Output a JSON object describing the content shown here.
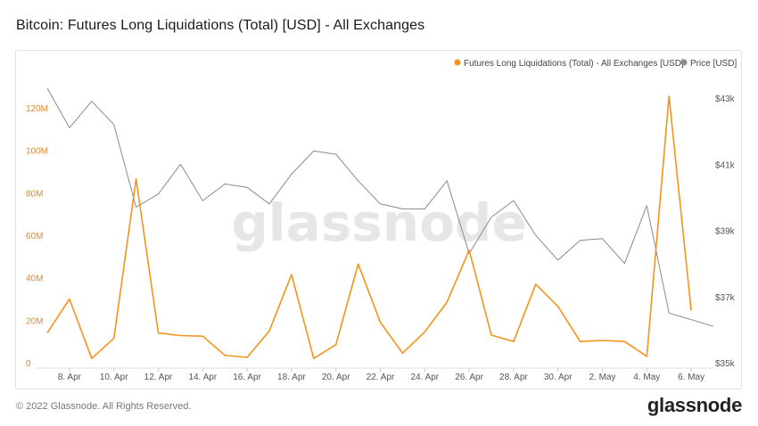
{
  "header": {
    "title": "Bitcoin: Futures Long Liquidations (Total) [USD] - All Exchanges"
  },
  "footer": {
    "copyright": "© 2022 Glassnode. All Rights Reserved.",
    "brand": "glassnode"
  },
  "watermark": "glassnode",
  "colors": {
    "liquidations": "#f7931a",
    "price": "#8a8a8a",
    "left_axis_text": "#e08a2a",
    "right_axis_text": "#555555"
  },
  "chart_data": {
    "type": "line",
    "title": "Bitcoin: Futures Long Liquidations (Total) [USD] - All Exchanges",
    "x": [
      "Apr 7",
      "Apr 8",
      "Apr 9",
      "Apr 10",
      "Apr 11",
      "Apr 12",
      "Apr 13",
      "Apr 14",
      "Apr 15",
      "Apr 16",
      "Apr 17",
      "Apr 18",
      "Apr 19",
      "Apr 20",
      "Apr 21",
      "Apr 22",
      "Apr 23",
      "Apr 24",
      "Apr 25",
      "Apr 26",
      "Apr 27",
      "Apr 28",
      "Apr 29",
      "Apr 30",
      "May 1",
      "May 2",
      "May 3",
      "May 4",
      "May 5",
      "May 6",
      "May 7"
    ],
    "x_ticks": [
      "8. Apr",
      "10. Apr",
      "12. Apr",
      "14. Apr",
      "16. Apr",
      "18. Apr",
      "20. Apr",
      "22. Apr",
      "24. Apr",
      "26. Apr",
      "28. Apr",
      "30. Apr",
      "2. May",
      "4. May",
      "6. May"
    ],
    "left_axis": {
      "ticks": [
        "0",
        "20M",
        "40M",
        "60M",
        "80M",
        "100M",
        "120M"
      ],
      "ylim": [
        0,
        130000000
      ]
    },
    "right_axis": {
      "ticks": [
        "$35k",
        "$37k",
        "$39k",
        "$41k",
        "$43k"
      ],
      "ylim": [
        35000,
        43900
      ]
    },
    "legend": {
      "position": "top-right"
    },
    "grid": false,
    "series": [
      {
        "name": "Futures Long Liquidations (Total) - All Exchanges [USD]",
        "axis": "left",
        "values": [
          14000000,
          30000000,
          2000000,
          11500000,
          86500000,
          14000000,
          12800000,
          12500000,
          3500000,
          2500000,
          15000000,
          41500000,
          2000000,
          8500000,
          46500000,
          19000000,
          4500000,
          14500000,
          28500000,
          53000000,
          13000000,
          10000000,
          37000000,
          26500000,
          10000000,
          10500000,
          10000000,
          3000000,
          125500000,
          24500000,
          null
        ]
      },
      {
        "name": "Price [USD]",
        "axis": "right",
        "values": [
          43300,
          42100,
          42900,
          42200,
          39700,
          40100,
          41000,
          39900,
          40400,
          40300,
          39800,
          40700,
          41400,
          41300,
          40500,
          39800,
          39650,
          39650,
          40500,
          38300,
          39400,
          39900,
          38850,
          38100,
          38700,
          38750,
          38000,
          39750,
          36500,
          36300,
          36100
        ]
      }
    ]
  }
}
